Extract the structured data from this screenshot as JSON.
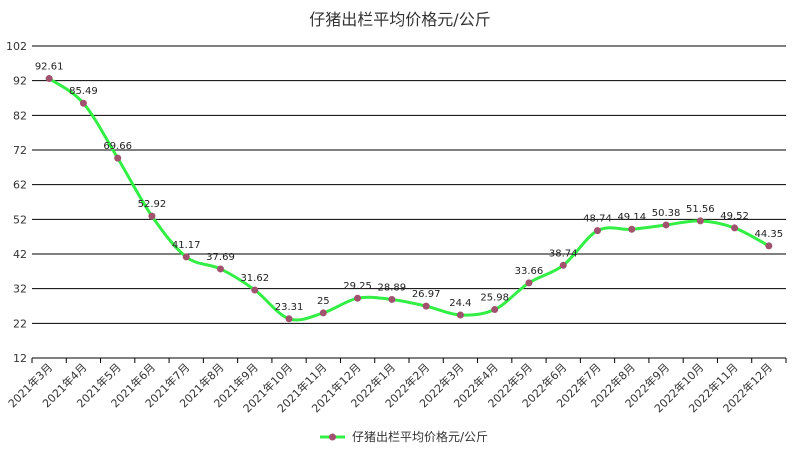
{
  "chart_data": {
    "type": "line",
    "title": "仔猪出栏平均价格元/公斤",
    "categories": [
      "2021年3月",
      "2021年4月",
      "2021年5月",
      "2021年6月",
      "2021年7月",
      "2021年8月",
      "2021年9月",
      "2021年10月",
      "2021年11月",
      "2021年12月",
      "2022年1月",
      "2022年2月",
      "2022年3月",
      "2022年4月",
      "2022年5月",
      "2022年6月",
      "2022年7月",
      "2022年8月",
      "2022年9月",
      "2022年10月",
      "2022年11月",
      "2022年12月"
    ],
    "series": [
      {
        "name": "仔猪出栏平均价格元/公斤",
        "values": [
          92.61,
          85.49,
          69.66,
          52.92,
          41.17,
          37.69,
          31.62,
          23.31,
          25,
          29.25,
          28.89,
          26.97,
          24.4,
          25.98,
          33.66,
          38.74,
          48.74,
          49.14,
          50.38,
          51.56,
          49.52,
          44.35
        ],
        "data_labels": [
          "92.61",
          "85.49",
          "69.66",
          "52.92",
          "41.17",
          "37.69",
          "31.62",
          "23.31",
          "25",
          "29.25",
          "28.89",
          "26.97",
          "24.4",
          "25.98",
          "33.66",
          "38.74",
          "48.74",
          "49.14",
          "50.38",
          "51.56",
          "49.52",
          "44.35"
        ]
      }
    ],
    "yticks": [
      "12",
      "22",
      "32",
      "42",
      "52",
      "62",
      "72",
      "82",
      "92",
      "102"
    ],
    "ylim": [
      12,
      102
    ],
    "grid": true,
    "legend_position": "bottom-center",
    "colors": {
      "line": "#33ee44",
      "marker": "#a0526e",
      "grid": "#000000"
    }
  }
}
